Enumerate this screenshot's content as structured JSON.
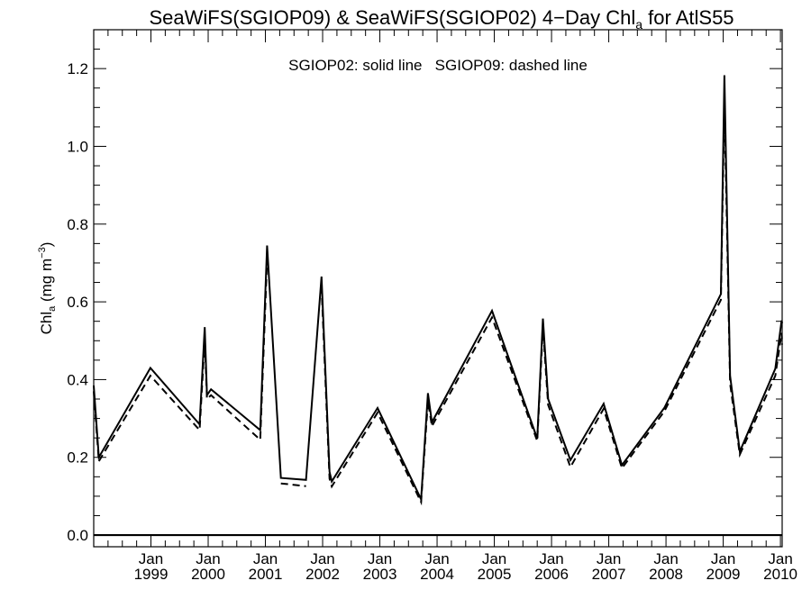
{
  "chart_data": {
    "type": "line",
    "title_main": "SeaWiFS(SGIOP09) & SeaWiFS(SGIOP02) 4−Day Chl",
    "title_sub": "a",
    "title_tail": " for AtlS55",
    "annotation": "SGIOP02: solid line   SGIOP09: dashed line",
    "ylabel": {
      "main": "Chl",
      "sub": "a",
      "mid": " (mg m",
      "sup": "−3",
      "end": ")"
    },
    "ylim": [
      -0.03,
      1.3
    ],
    "yticks": [
      0.0,
      0.2,
      0.4,
      0.6,
      0.8,
      1.0,
      1.2
    ],
    "ytick_labels": [
      "0.0",
      "0.2",
      "0.4",
      "0.6",
      "0.8",
      "1.0",
      "1.2"
    ],
    "xlim": [
      1998.0,
      2010.03
    ],
    "xticks": [
      {
        "x": 1999.0,
        "month": "Jan",
        "year": "1999"
      },
      {
        "x": 2000.0,
        "month": "Jan",
        "year": "2000"
      },
      {
        "x": 2001.0,
        "month": "Jan",
        "year": "2001"
      },
      {
        "x": 2002.0,
        "month": "Jan",
        "year": "2002"
      },
      {
        "x": 2003.0,
        "month": "Jan",
        "year": "2003"
      },
      {
        "x": 2004.0,
        "month": "Jan",
        "year": "2004"
      },
      {
        "x": 2005.0,
        "month": "Jan",
        "year": "2005"
      },
      {
        "x": 2006.0,
        "month": "Jan",
        "year": "2006"
      },
      {
        "x": 2007.0,
        "month": "Jan",
        "year": "2007"
      },
      {
        "x": 2008.0,
        "month": "Jan",
        "year": "2008"
      },
      {
        "x": 2009.0,
        "month": "Jan",
        "year": "2009"
      },
      {
        "x": 2010.0,
        "month": "Jan",
        "year": "2010"
      }
    ],
    "hline": 0.0,
    "grid": false,
    "series": [
      {
        "name": "SGIOP02",
        "style": "solid",
        "color": "#000000",
        "segments": [
          [
            [
              1998.0,
              0.385
            ],
            [
              1998.09,
              0.2
            ],
            [
              1998.99,
              0.43
            ],
            [
              1999.85,
              0.285
            ],
            [
              1999.94,
              0.535
            ],
            [
              1999.98,
              0.36
            ],
            [
              2000.05,
              0.375
            ],
            [
              2000.91,
              0.27
            ],
            [
              2001.03,
              0.745
            ],
            [
              2001.27,
              0.147
            ],
            [
              2001.71,
              0.142
            ],
            [
              2001.98,
              0.665
            ],
            [
              2002.12,
              0.163
            ],
            [
              2002.16,
              0.138
            ],
            [
              2002.96,
              0.327
            ],
            [
              2003.72,
              0.092
            ],
            [
              2003.84,
              0.365
            ],
            [
              2003.91,
              0.29
            ],
            [
              2004.96,
              0.577
            ],
            [
              2005.75,
              0.248
            ],
            [
              2005.85,
              0.557
            ],
            [
              2005.94,
              0.35
            ],
            [
              2006.33,
              0.193
            ],
            [
              2006.91,
              0.338
            ],
            [
              2007.23,
              0.18
            ],
            [
              2007.97,
              0.327
            ],
            [
              2008.96,
              0.62
            ],
            [
              2009.02,
              1.183
            ],
            [
              2009.12,
              0.41
            ],
            [
              2009.29,
              0.215
            ],
            [
              2009.91,
              0.428
            ],
            [
              2010.02,
              0.552
            ],
            [
              2010.03,
              0.545
            ]
          ]
        ]
      },
      {
        "name": "SGIOP09",
        "style": "dashed",
        "color": "#000000",
        "segments": [
          [
            [
              1998.0,
              0.37
            ],
            [
              1998.09,
              0.19
            ],
            [
              1998.99,
              0.41
            ],
            [
              1999.85,
              0.27
            ],
            [
              1999.94,
              0.505
            ],
            [
              1999.98,
              0.35
            ],
            [
              2000.05,
              0.36
            ],
            [
              2000.91,
              0.245
            ],
            [
              2001.03,
              0.71
            ]
          ],
          [
            [
              2001.27,
              0.133
            ],
            [
              2001.71,
              0.126
            ]
          ],
          [
            [
              2001.98,
              0.64
            ],
            [
              2002.12,
              0.145
            ],
            [
              2002.16,
              0.125
            ],
            [
              2002.96,
              0.315
            ],
            [
              2003.72,
              0.085
            ],
            [
              2003.84,
              0.345
            ],
            [
              2003.91,
              0.28
            ],
            [
              2004.96,
              0.56
            ],
            [
              2005.75,
              0.242
            ],
            [
              2005.85,
              0.535
            ],
            [
              2005.94,
              0.335
            ],
            [
              2006.33,
              0.175
            ],
            [
              2006.91,
              0.325
            ],
            [
              2007.23,
              0.172
            ],
            [
              2007.97,
              0.318
            ],
            [
              2008.96,
              0.605
            ],
            [
              2009.02,
              1.12
            ],
            [
              2009.12,
              0.39
            ],
            [
              2009.29,
              0.207
            ],
            [
              2009.91,
              0.41
            ],
            [
              2010.02,
              0.52
            ],
            [
              2010.03,
              0.49
            ]
          ]
        ]
      }
    ]
  }
}
